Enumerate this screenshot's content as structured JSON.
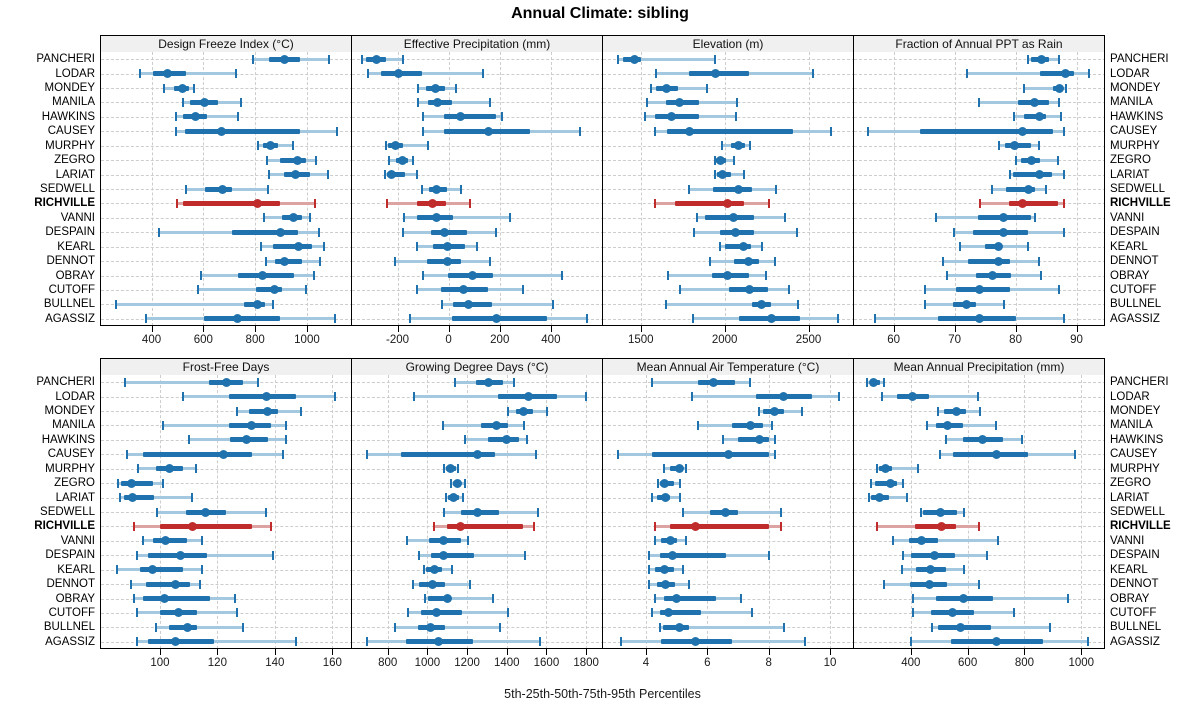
{
  "title": "Annual Climate: sibling",
  "caption": "5th-25th-50th-75th-95th Percentiles",
  "percentiles": [
    "5th",
    "25th",
    "50th",
    "75th",
    "95th"
  ],
  "stations": [
    "PANCHERI",
    "LODAR",
    "MONDEY",
    "MANILA",
    "HAWKINS",
    "CAUSEY",
    "MURPHY",
    "ZEGRO",
    "LARIAT",
    "SEDWELL",
    "RICHVILLE",
    "VANNI",
    "DESPAIN",
    "KEARL",
    "DENNOT",
    "OBRAY",
    "CUTOFF",
    "BULLNEL",
    "AGASSIZ"
  ],
  "highlight_station": "RICHVILLE",
  "colors": {
    "series_blue": "#1f72ad",
    "series_blue_light": "#a3c8e0",
    "highlight_red": "#c02b2b",
    "highlight_red_light": "#ddA3a3",
    "header_bg": "#f0f0f0",
    "grid": "#cdcdcd",
    "border": "#000000"
  },
  "chart_data": [
    {
      "type": "boxplot-percentile",
      "panel": "Design Freeze Index (°C)",
      "ticks": [
        400,
        600,
        800,
        1000
      ],
      "xlim": [
        205,
        1170
      ],
      "values": [
        [
          790,
          855,
          912,
          975,
          1085
        ],
        [
          357,
          404,
          462,
          532,
          726
        ],
        [
          450,
          485,
          520,
          545,
          565
        ],
        [
          520,
          550,
          605,
          655,
          745
        ],
        [
          493,
          520,
          570,
          615,
          735
        ],
        [
          495,
          530,
          670,
          975,
          1115
        ],
        [
          810,
          830,
          860,
          890,
          947
        ],
        [
          845,
          895,
          965,
          997,
          1036
        ],
        [
          855,
          910,
          955,
          1010,
          1083
        ],
        [
          535,
          605,
          675,
          712,
          850
        ],
        [
          500,
          522,
          810,
          896,
          1030
        ],
        [
          835,
          905,
          947,
          982,
          1010
        ],
        [
          427,
          710,
          896,
          966,
          1048
        ],
        [
          823,
          870,
          966,
          1020,
          1067
        ],
        [
          840,
          877,
          912,
          982,
          1052
        ],
        [
          590,
          734,
          827,
          950,
          1029
        ],
        [
          578,
          804,
          873,
          905,
          997
        ],
        [
          264,
          757,
          811,
          838,
          870
        ],
        [
          377,
          602,
          730,
          897,
          1110
        ]
      ]
    },
    {
      "type": "boxplot-percentile",
      "panel": "Effective Precipitation (mm)",
      "ticks": [
        -200,
        0,
        200,
        400
      ],
      "xlim": [
        -378,
        600
      ],
      "values": [
        [
          -340,
          -325,
          -282,
          -245,
          -180
        ],
        [
          -314,
          -263,
          -196,
          -106,
          133
        ],
        [
          -120,
          -90,
          -50,
          -15,
          30
        ],
        [
          -120,
          -80,
          -45,
          15,
          160
        ],
        [
          -100,
          -20,
          45,
          185,
          210
        ],
        [
          -100,
          -20,
          155,
          320,
          515
        ],
        [
          -245,
          -238,
          -207,
          -180,
          -80
        ],
        [
          -235,
          -207,
          -180,
          -157,
          -140
        ],
        [
          -247,
          -243,
          -223,
          -170,
          -122
        ],
        [
          -105,
          -78,
          -47,
          -8,
          47
        ],
        [
          -240,
          -125,
          -65,
          -12,
          85
        ],
        [
          -176,
          -122,
          -47,
          16,
          240
        ],
        [
          -180,
          -67,
          -16,
          70,
          185
        ],
        [
          -125,
          -60,
          -4,
          63,
          110
        ],
        [
          -210,
          -86,
          -4,
          47,
          160
        ],
        [
          -100,
          -4,
          94,
          173,
          443
        ],
        [
          -125,
          -31,
          59,
          153,
          290
        ],
        [
          -27,
          16,
          78,
          170,
          408
        ],
        [
          -153,
          12,
          188,
          384,
          540
        ]
      ]
    },
    {
      "type": "boxplot-percentile",
      "panel": "Elevation (m)",
      "ticks": [
        1500,
        2000,
        2500
      ],
      "xlim": [
        1275,
        2765
      ],
      "values": [
        [
          1365,
          1395,
          1463,
          1500,
          1945
        ],
        [
          1590,
          1785,
          1945,
          2145,
          2525
        ],
        [
          1560,
          1590,
          1655,
          1725,
          1895
        ],
        [
          1540,
          1650,
          1730,
          1850,
          2075
        ],
        [
          1525,
          1585,
          1685,
          1845,
          2070
        ],
        [
          1585,
          1655,
          1790,
          2410,
          2635
        ],
        [
          1985,
          2035,
          2085,
          2120,
          2150
        ],
        [
          1940,
          1950,
          1975,
          2010,
          2055
        ],
        [
          1940,
          1955,
          1990,
          2035,
          2115
        ],
        [
          1785,
          1930,
          2085,
          2165,
          2305
        ],
        [
          1583,
          1707,
          2015,
          2115,
          2265
        ],
        [
          1835,
          1885,
          2055,
          2175,
          2360
        ],
        [
          1815,
          1975,
          2065,
          2175,
          2430
        ],
        [
          1975,
          2005,
          2110,
          2157,
          2222
        ],
        [
          1910,
          2057,
          2140,
          2205,
          2300
        ],
        [
          1665,
          1925,
          2015,
          2145,
          2245
        ],
        [
          1735,
          2027,
          2151,
          2258,
          2382
        ],
        [
          1650,
          2163,
          2222,
          2276,
          2435
        ],
        [
          1810,
          2086,
          2281,
          2447,
          2678
        ]
      ]
    },
    {
      "type": "boxplot-percentile",
      "panel": "Fraction of Annual PPT as Rain",
      "ticks": [
        60,
        70,
        80,
        90
      ],
      "xlim": [
        53.5,
        94.5
      ],
      "values": [
        [
          82,
          82.6,
          84.2,
          85.4,
          87.2
        ],
        [
          72,
          84,
          88.2,
          89.5,
          92.1
        ],
        [
          81.4,
          86.2,
          87.2,
          87.8,
          88.3
        ],
        [
          74,
          80.4,
          83.1,
          85.4,
          87.2
        ],
        [
          79.8,
          81.3,
          83.9,
          85,
          87.4
        ],
        [
          55.8,
          64.3,
          81.1,
          86.2,
          88
        ],
        [
          77.3,
          78.3,
          79.9,
          82.6,
          83.9
        ],
        [
          80.1,
          80.9,
          82.6,
          84,
          86.9
        ],
        [
          79.1,
          79.5,
          84,
          85.9,
          88
        ],
        [
          76.1,
          78.5,
          82.1,
          83.2,
          85
        ],
        [
          74.2,
          78.9,
          81.1,
          87,
          88
        ],
        [
          66.9,
          73.8,
          78,
          82.6,
          83.2
        ],
        [
          69.9,
          73,
          78,
          82.1,
          88
        ],
        [
          70.9,
          75,
          77.2,
          77.8,
          82.1
        ],
        [
          68.1,
          72.2,
          77.2,
          79.1,
          83.9
        ],
        [
          68.7,
          73.5,
          76.2,
          79.3,
          84.1
        ],
        [
          65.1,
          70.2,
          74,
          79.1,
          87.2
        ],
        [
          65.1,
          69.7,
          72,
          73.5,
          78.1
        ],
        [
          57,
          67.2,
          74,
          80.1,
          88
        ]
      ]
    },
    {
      "type": "boxplot-percentile",
      "panel": "Frost-Free Days",
      "ticks": [
        100,
        120,
        140,
        160
      ],
      "xlim": [
        79.5,
        166.5
      ],
      "values": [
        [
          88,
          117,
          123,
          129,
          134
        ],
        [
          108,
          124,
          137,
          147.5,
          161
        ],
        [
          127,
          131,
          137.5,
          141,
          149
        ],
        [
          101,
          124,
          132,
          138.5,
          144
        ],
        [
          110,
          124.5,
          130,
          137.5,
          144
        ],
        [
          88.5,
          94,
          122,
          132,
          143
        ],
        [
          92.5,
          98.5,
          103.5,
          108,
          112.5
        ],
        [
          85.5,
          86.5,
          90,
          97.5,
          101
        ],
        [
          86,
          87.5,
          90.5,
          98,
          111
        ],
        [
          99,
          109,
          116,
          123,
          137
        ],
        [
          91,
          100,
          111.5,
          132,
          138.5
        ],
        [
          94,
          97.5,
          102,
          109.5,
          114.5
        ],
        [
          92,
          96,
          107,
          116.5,
          139.5
        ],
        [
          85,
          93,
          97.5,
          108,
          114.5
        ],
        [
          90,
          95,
          105.5,
          110.5,
          114
        ],
        [
          91,
          94,
          101.5,
          117.5,
          126
        ],
        [
          92,
          100,
          106.5,
          113,
          127
        ],
        [
          98.5,
          103,
          109.5,
          113,
          129
        ],
        [
          92,
          96,
          105.5,
          119,
          147.5
        ]
      ]
    },
    {
      "type": "boxplot-percentile",
      "panel": "Growing Degree Days (°C)",
      "ticks": [
        800,
        1000,
        1200,
        1400,
        1600,
        1800
      ],
      "xlim": [
        620,
        1880
      ],
      "values": [
        [
          1140,
          1245,
          1310,
          1380,
          1435
        ],
        [
          930,
          1355,
          1510,
          1655,
          1800
        ],
        [
          1405,
          1445,
          1485,
          1530,
          1605
        ],
        [
          1080,
          1270,
          1350,
          1405,
          1485
        ],
        [
          1190,
          1305,
          1400,
          1460,
          1500
        ],
        [
          695,
          865,
          1255,
          1340,
          1545
        ],
        [
          1085,
          1095,
          1115,
          1145,
          1155
        ],
        [
          1120,
          1130,
          1150,
          1170,
          1190
        ],
        [
          1095,
          1105,
          1130,
          1160,
          1180
        ],
        [
          1085,
          1170,
          1255,
          1360,
          1555
        ],
        [
          1035,
          1100,
          1165,
          1480,
          1535
        ],
        [
          895,
          1010,
          1080,
          1170,
          1205
        ],
        [
          960,
          1020,
          1080,
          1235,
          1490
        ],
        [
          985,
          995,
          1035,
          1075,
          1125
        ],
        [
          925,
          960,
          1025,
          1090,
          1215
        ],
        [
          990,
          1005,
          1100,
          1120,
          1330
        ],
        [
          900,
          970,
          1045,
          1175,
          1405
        ],
        [
          835,
          955,
          1015,
          1090,
          1365
        ],
        [
          695,
          890,
          1055,
          1230,
          1565
        ]
      ]
    },
    {
      "type": "boxplot-percentile",
      "panel": "Mean Annual Air Temperature (°C)",
      "ticks": [
        4,
        6,
        8,
        10
      ],
      "xlim": [
        2.6,
        10.75
      ],
      "values": [
        [
          4.2,
          5.7,
          6.2,
          6.9,
          7.4
        ],
        [
          5.5,
          7.6,
          8.5,
          9.4,
          10.3
        ],
        [
          7.7,
          7.8,
          8.2,
          8.5,
          9.1
        ],
        [
          5.7,
          6.8,
          7.4,
          7.8,
          8.1
        ],
        [
          6.5,
          7.0,
          7.7,
          8.0,
          8.2
        ],
        [
          3.1,
          4.2,
          6.7,
          8.0,
          8.2
        ],
        [
          4.6,
          4.8,
          5.1,
          5.2,
          5.3
        ],
        [
          4.4,
          4.45,
          4.6,
          4.9,
          5.1
        ],
        [
          4.2,
          4.35,
          4.65,
          4.8,
          5.1
        ],
        [
          5.2,
          6.1,
          6.6,
          7.0,
          8.4
        ],
        [
          4.3,
          4.8,
          5.6,
          8.0,
          8.4
        ],
        [
          4.3,
          4.5,
          4.8,
          5.0,
          5.3
        ],
        [
          4.1,
          4.45,
          4.85,
          6.6,
          8.0
        ],
        [
          4.1,
          4.3,
          4.6,
          4.9,
          5.2
        ],
        [
          4.1,
          4.35,
          4.65,
          4.95,
          5.4
        ],
        [
          4.3,
          4.6,
          5.0,
          6.3,
          7.1
        ],
        [
          4.2,
          4.45,
          4.75,
          5.8,
          7.45
        ],
        [
          4.45,
          4.55,
          5.1,
          5.4,
          8.5
        ],
        [
          3.2,
          4.5,
          5.6,
          6.8,
          9.2
        ]
      ]
    },
    {
      "type": "boxplot-percentile",
      "panel": "Mean Annual Precipitation (mm)",
      "ticks": [
        400,
        600,
        800,
        1000
      ],
      "xlim": [
        200,
        1080
      ],
      "values": [
        [
          245,
          255,
          270,
          290,
          305
        ],
        [
          300,
          350,
          407,
          463,
          637
        ],
        [
          497,
          518,
          560,
          595,
          644
        ],
        [
          456,
          487,
          529,
          584,
          699
        ],
        [
          525,
          584,
          651,
          724,
          790
        ],
        [
          504,
          550,
          700,
          814,
          977
        ],
        [
          282,
          289,
          310,
          334,
          424
        ],
        [
          261,
          275,
          327,
          351,
          372
        ],
        [
          254,
          261,
          289,
          324,
          386
        ],
        [
          435,
          442,
          504,
          564,
          588
        ],
        [
          282,
          414,
          508,
          560,
          640
        ],
        [
          337,
          393,
          438,
          494,
          706
        ],
        [
          372,
          400,
          483,
          556,
          668
        ],
        [
          368,
          417,
          470,
          525,
          588
        ],
        [
          306,
          397,
          466,
          529,
          640
        ],
        [
          407,
          487,
          584,
          689,
          953
        ],
        [
          407,
          470,
          546,
          623,
          762
        ],
        [
          473,
          497,
          574,
          682,
          890
        ],
        [
          400,
          543,
          700,
          866,
          1022
        ]
      ]
    }
  ]
}
